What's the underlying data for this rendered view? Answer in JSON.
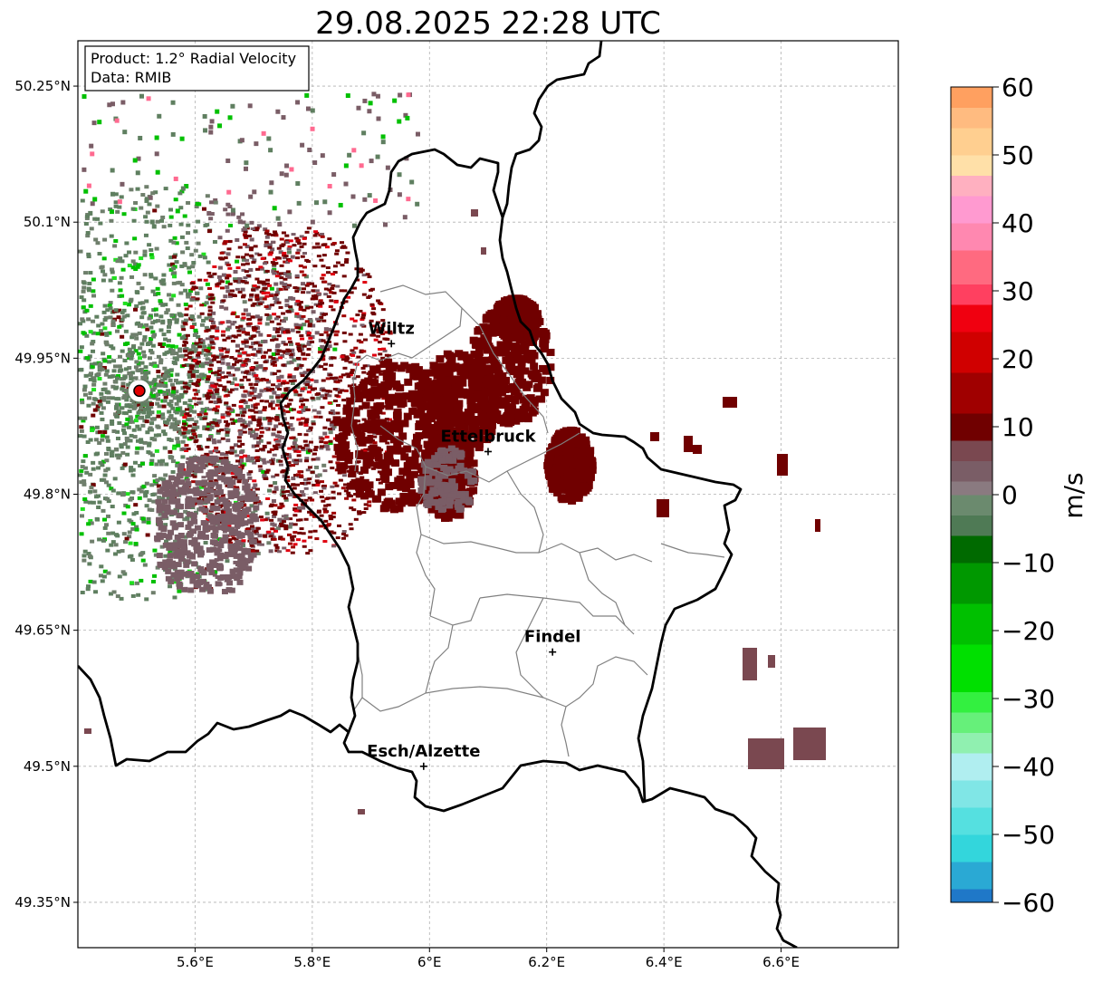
{
  "title": "29.08.2025 22:28 UTC",
  "info": {
    "product": "Product: 1.2° Radial Velocity",
    "data": "Data: RMIB"
  },
  "axes": {
    "lon_range": [
      5.4,
      6.8
    ],
    "lat_range": [
      49.3,
      50.3
    ],
    "x_ticks": [
      {
        "value": 5.6,
        "label": "5.6°E"
      },
      {
        "value": 5.8,
        "label": "5.8°E"
      },
      {
        "value": 6.0,
        "label": "6°E"
      },
      {
        "value": 6.2,
        "label": "6.2°E"
      },
      {
        "value": 6.4,
        "label": "6.4°E"
      },
      {
        "value": 6.6,
        "label": "6.6°E"
      }
    ],
    "y_ticks": [
      {
        "value": 50.25,
        "label": "50.25°N"
      },
      {
        "value": 50.1,
        "label": "50.1°N"
      },
      {
        "value": 49.95,
        "label": "49.95°N"
      },
      {
        "value": 49.8,
        "label": "49.8°N"
      },
      {
        "value": 49.65,
        "label": "49.65°N"
      },
      {
        "value": 49.5,
        "label": "49.5°N"
      },
      {
        "value": 49.35,
        "label": "49.35°N"
      }
    ],
    "grid": true
  },
  "cities": [
    {
      "name": "Wiltz",
      "lon": 5.935,
      "lat": 49.966
    },
    {
      "name": "Ettelbruck",
      "lon": 6.1,
      "lat": 49.847
    },
    {
      "name": "Findel",
      "lon": 6.21,
      "lat": 49.626
    },
    {
      "name": "Esch/Alzette",
      "lon": 5.99,
      "lat": 49.5
    }
  ],
  "radar_site": {
    "lon": 5.505,
    "lat": 49.914,
    "color": "#e00000"
  },
  "colorbar": {
    "label": "m/s",
    "min": -60,
    "max": 60,
    "ticks": [
      {
        "value": 60,
        "label": "60"
      },
      {
        "value": 50,
        "label": "50"
      },
      {
        "value": 40,
        "label": "40"
      },
      {
        "value": 30,
        "label": "30"
      },
      {
        "value": 20,
        "label": "20"
      },
      {
        "value": 10,
        "label": "10"
      },
      {
        "value": 0,
        "label": "0"
      },
      {
        "value": -10,
        "label": "−10"
      },
      {
        "value": -20,
        "label": "−20"
      },
      {
        "value": -30,
        "label": "−30"
      },
      {
        "value": -40,
        "label": "−40"
      },
      {
        "value": -50,
        "label": "−50"
      },
      {
        "value": -60,
        "label": "−60"
      }
    ],
    "stops": [
      {
        "from": -60,
        "to": -58,
        "color": "#1f78c8"
      },
      {
        "from": -58,
        "to": -54,
        "color": "#2aa9d4"
      },
      {
        "from": -54,
        "to": -50,
        "color": "#33d6dc"
      },
      {
        "from": -50,
        "to": -46,
        "color": "#55e0e0"
      },
      {
        "from": -46,
        "to": -42,
        "color": "#80e6e6"
      },
      {
        "from": -42,
        "to": -38,
        "color": "#b0eef0"
      },
      {
        "from": -38,
        "to": -35,
        "color": "#90f0b0"
      },
      {
        "from": -35,
        "to": -32,
        "color": "#66f07a"
      },
      {
        "from": -32,
        "to": -29,
        "color": "#33f040"
      },
      {
        "from": -29,
        "to": -22,
        "color": "#00e000"
      },
      {
        "from": -22,
        "to": -16,
        "color": "#00c000"
      },
      {
        "from": -16,
        "to": -10,
        "color": "#009800"
      },
      {
        "from": -10,
        "to": -6,
        "color": "#006a00"
      },
      {
        "from": -6,
        "to": -3,
        "color": "#4f7a55"
      },
      {
        "from": -3,
        "to": 0,
        "color": "#6b8a6e"
      },
      {
        "from": 0,
        "to": 2,
        "color": "#8a7a80"
      },
      {
        "from": 2,
        "to": 5,
        "color": "#7a5d66"
      },
      {
        "from": 5,
        "to": 8,
        "color": "#7a4850"
      },
      {
        "from": 8,
        "to": 12,
        "color": "#700000"
      },
      {
        "from": 12,
        "to": 18,
        "color": "#a00000"
      },
      {
        "from": 18,
        "to": 24,
        "color": "#d00000"
      },
      {
        "from": 24,
        "to": 28,
        "color": "#f00010"
      },
      {
        "from": 28,
        "to": 31,
        "color": "#ff4060"
      },
      {
        "from": 31,
        "to": 36,
        "color": "#ff6a80"
      },
      {
        "from": 36,
        "to": 40,
        "color": "#ff88b0"
      },
      {
        "from": 40,
        "to": 44,
        "color": "#ff9ad0"
      },
      {
        "from": 44,
        "to": 47,
        "color": "#ffb0c0"
      },
      {
        "from": 47,
        "to": 50,
        "color": "#ffe0a8"
      },
      {
        "from": 50,
        "to": 54,
        "color": "#ffcf90"
      },
      {
        "from": 54,
        "to": 57,
        "color": "#ffbb80"
      },
      {
        "from": 57,
        "to": 60,
        "color": "#ffa060"
      }
    ]
  },
  "radar_colors": {
    "dark_red": "#700000",
    "mauve": "#7a5d66",
    "rose": "#7a4850",
    "gray_green": "#5f7f60",
    "green": "#00c000",
    "bright_green": "#20e020",
    "red": "#e00010",
    "pink": "#ff6a90"
  }
}
